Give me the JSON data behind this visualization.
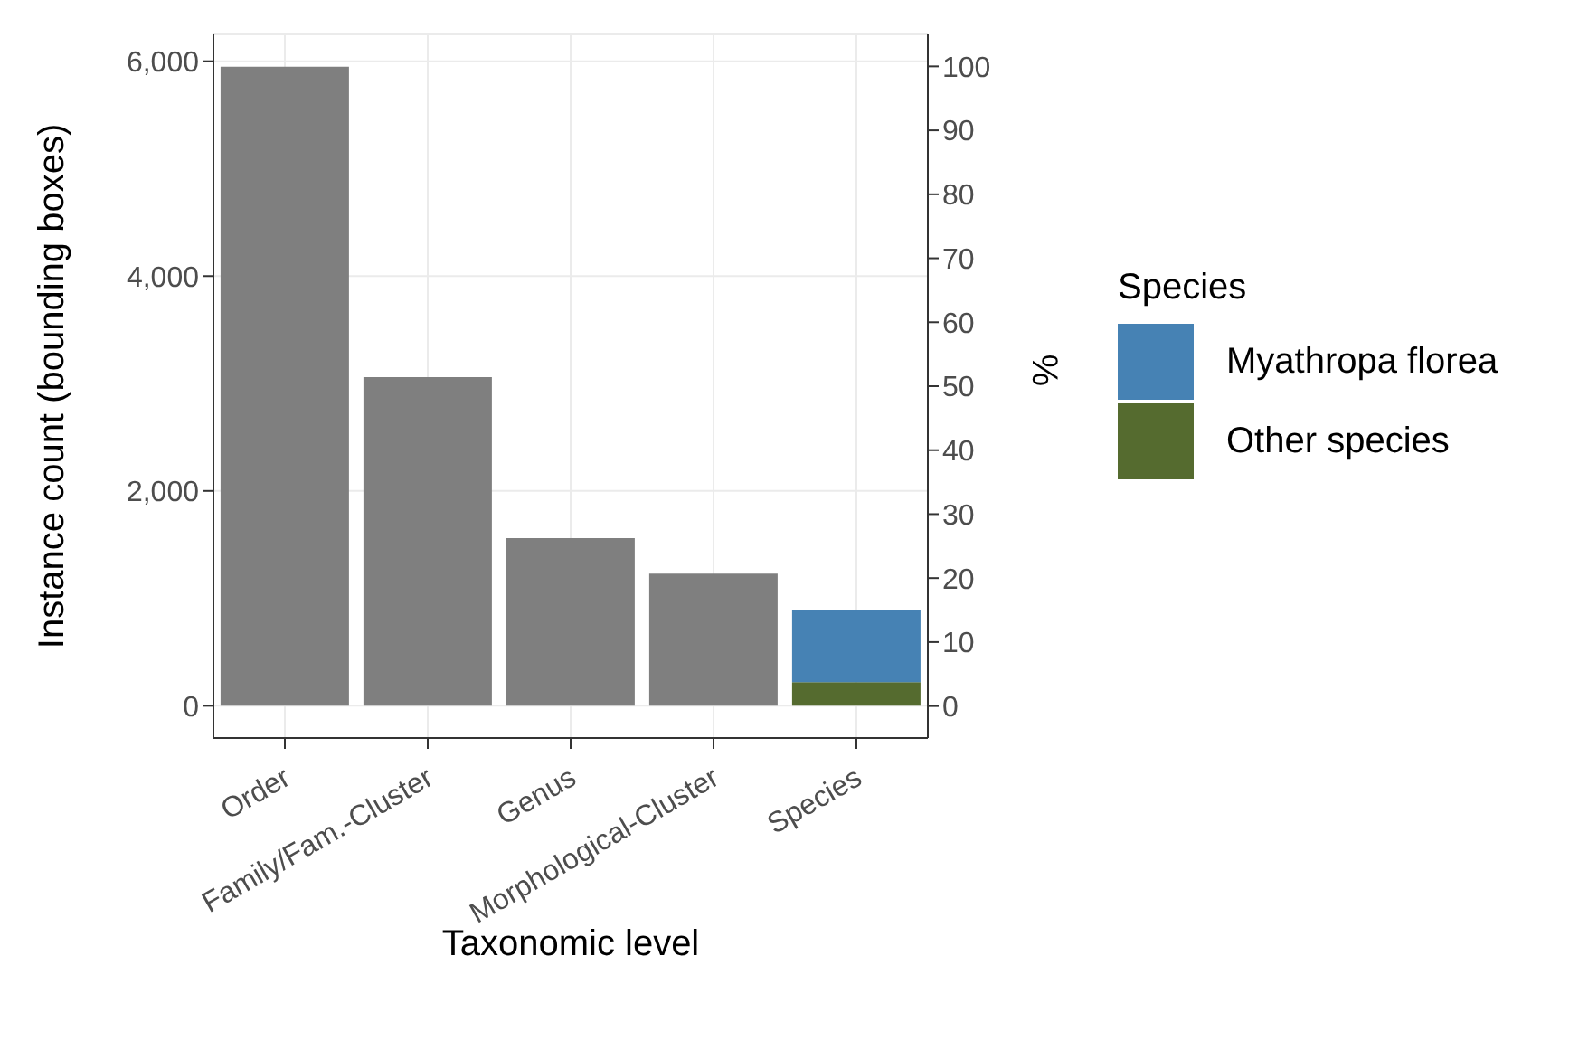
{
  "chart_data": {
    "type": "bar",
    "stacked": true,
    "xlabel": "Taxonomic level",
    "ylabel": "Instance count (bounding boxes)",
    "y2label": "%",
    "legend_title": "Species",
    "categories": [
      "Order",
      "Family/Fam.-Cluster",
      "Genus",
      "Morphological-Cluster",
      "Species"
    ],
    "series": [
      {
        "color": "#7f7f7f",
        "values": [
          5950,
          3060,
          1560,
          1230,
          null
        ]
      },
      {
        "name": "Other species",
        "color": "#556b2f",
        "values": [
          null,
          null,
          null,
          null,
          220
        ]
      },
      {
        "name": "Myathropa florea",
        "color": "#4682b4",
        "values": [
          null,
          null,
          null,
          null,
          670
        ]
      }
    ],
    "ylim": [
      -300,
      6250
    ],
    "yticks": [
      0,
      {
        "value": 2000,
        "label": "2,000"
      },
      {
        "value": 4000,
        "label": "4,000"
      },
      {
        "value": 6000,
        "label": "6,000"
      }
    ],
    "y2lim": [
      -5,
      105
    ],
    "y2ticks": [
      0,
      10,
      20,
      30,
      40,
      50,
      60,
      70,
      80,
      90,
      100
    ],
    "grid": true,
    "legend": "right"
  }
}
